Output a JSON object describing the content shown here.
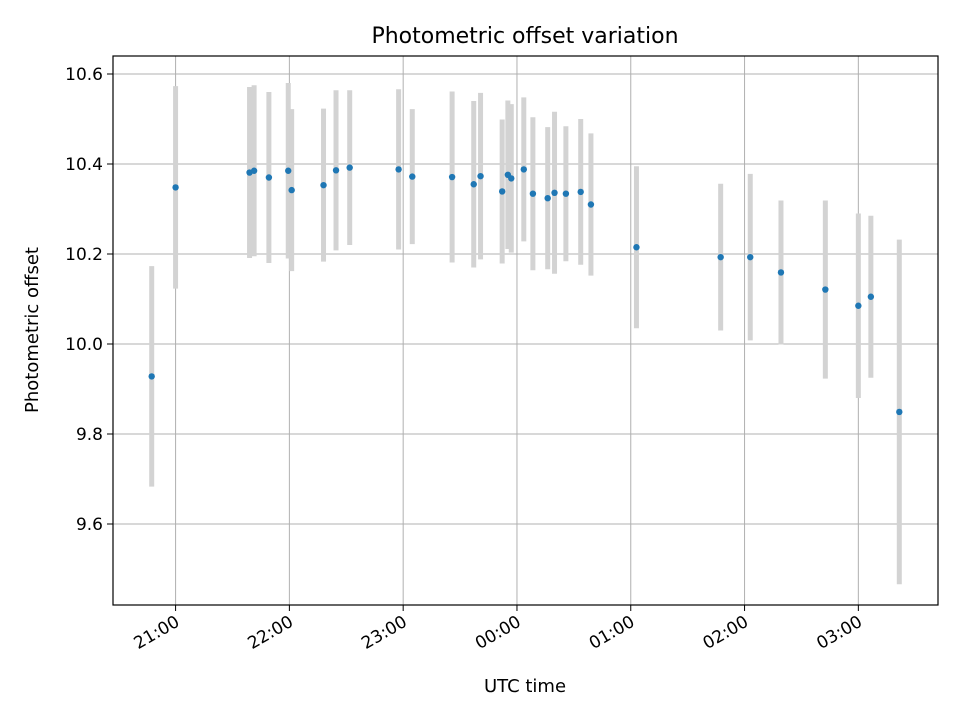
{
  "chart_data": {
    "type": "scatter",
    "title": "Photometric offset variation",
    "xlabel": "UTC time",
    "ylabel": "Photometric offset",
    "x_unit": "hour of UTC night (hours after 20:00, values past 24:00 wrap to next day)",
    "xlim": [
      20.45,
      27.7
    ],
    "ylim": [
      9.42,
      10.64
    ],
    "x_ticks": [
      {
        "value": 21.0,
        "label": "21:00"
      },
      {
        "value": 22.0,
        "label": "22:00"
      },
      {
        "value": 23.0,
        "label": "23:00"
      },
      {
        "value": 24.0,
        "label": "00:00"
      },
      {
        "value": 25.0,
        "label": "01:00"
      },
      {
        "value": 26.0,
        "label": "02:00"
      },
      {
        "value": 27.0,
        "label": "03:00"
      }
    ],
    "y_ticks": [
      {
        "value": 9.6,
        "label": "9.6"
      },
      {
        "value": 9.8,
        "label": "9.8"
      },
      {
        "value": 10.0,
        "label": "10.0"
      },
      {
        "value": 10.2,
        "label": "10.2"
      },
      {
        "value": 10.4,
        "label": "10.4"
      },
      {
        "value": 10.6,
        "label": "10.6"
      }
    ],
    "grid": true,
    "marker_color": "#1f77b4",
    "errorbar_color": "#d3d3d3",
    "points": [
      {
        "x": 20.79,
        "y": 9.928,
        "err": 0.245
      },
      {
        "x": 21.0,
        "y": 10.348,
        "err": 0.225
      },
      {
        "x": 21.65,
        "y": 10.381,
        "err": 0.19
      },
      {
        "x": 21.69,
        "y": 10.385,
        "err": 0.19
      },
      {
        "x": 21.82,
        "y": 10.37,
        "err": 0.19
      },
      {
        "x": 21.99,
        "y": 10.385,
        "err": 0.195
      },
      {
        "x": 22.02,
        "y": 10.342,
        "err": 0.18
      },
      {
        "x": 22.3,
        "y": 10.353,
        "err": 0.17
      },
      {
        "x": 22.41,
        "y": 10.386,
        "err": 0.178
      },
      {
        "x": 22.53,
        "y": 10.392,
        "err": 0.172
      },
      {
        "x": 22.96,
        "y": 10.388,
        "err": 0.178
      },
      {
        "x": 23.08,
        "y": 10.372,
        "err": 0.15
      },
      {
        "x": 23.43,
        "y": 10.371,
        "err": 0.19
      },
      {
        "x": 23.62,
        "y": 10.355,
        "err": 0.185
      },
      {
        "x": 23.68,
        "y": 10.373,
        "err": 0.185
      },
      {
        "x": 23.87,
        "y": 10.339,
        "err": 0.16
      },
      {
        "x": 23.92,
        "y": 10.376,
        "err": 0.165
      },
      {
        "x": 23.95,
        "y": 10.368,
        "err": 0.165
      },
      {
        "x": 24.06,
        "y": 10.388,
        "err": 0.16
      },
      {
        "x": 24.14,
        "y": 10.334,
        "err": 0.17
      },
      {
        "x": 24.27,
        "y": 10.324,
        "err": 0.158
      },
      {
        "x": 24.33,
        "y": 10.336,
        "err": 0.18
      },
      {
        "x": 24.43,
        "y": 10.334,
        "err": 0.15
      },
      {
        "x": 24.56,
        "y": 10.338,
        "err": 0.162
      },
      {
        "x": 24.65,
        "y": 10.31,
        "err": 0.158
      },
      {
        "x": 25.05,
        "y": 10.215,
        "err": 0.18
      },
      {
        "x": 25.79,
        "y": 10.193,
        "err": 0.163
      },
      {
        "x": 26.05,
        "y": 10.193,
        "err": 0.185
      },
      {
        "x": 26.32,
        "y": 10.159,
        "err": 0.16
      },
      {
        "x": 26.71,
        "y": 10.121,
        "err": 0.198
      },
      {
        "x": 27.0,
        "y": 10.085,
        "err": 0.205
      },
      {
        "x": 27.11,
        "y": 10.105,
        "err": 0.18
      },
      {
        "x": 27.36,
        "y": 9.849,
        "err": 0.383
      }
    ]
  }
}
